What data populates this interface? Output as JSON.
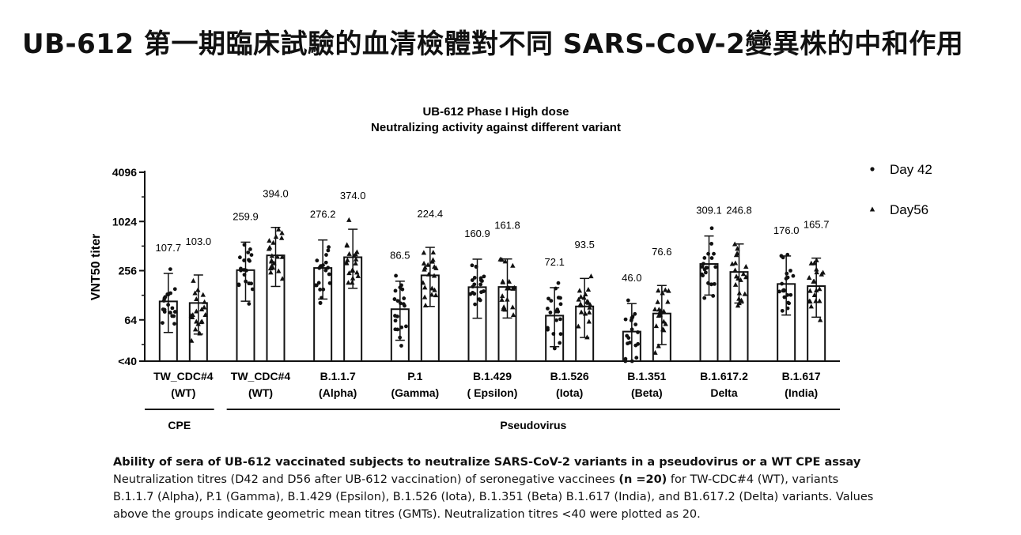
{
  "slide": {
    "title": "UB-612 第一期臨床試驗的血清檢體對不同 SARS-CoV-2變異株的中和作用"
  },
  "chart_data": {
    "type": "bar",
    "title": "UB-612 Phase I High dose",
    "subtitle": "Neutralizing activity against different variant",
    "ylabel": "VNT50 titer",
    "y_scale": "log2",
    "yticks": [
      "4096",
      "1024",
      "256",
      "64",
      "<40"
    ],
    "ylim": [
      20,
      4096
    ],
    "categories": [
      {
        "line1": "TW_CDC#4",
        "line2": "(WT)"
      },
      {
        "line1": "TW_CDC#4",
        "line2": "(WT)"
      },
      {
        "line1": "B.1.1.7",
        "line2": "(Alpha)"
      },
      {
        "line1": "P.1",
        "line2": "(Gamma)"
      },
      {
        "line1": "B.1.429",
        "line2": "( Epsilon)"
      },
      {
        "line1": "B.1.526",
        "line2": "(Iota)"
      },
      {
        "line1": "B.1.351",
        "line2": "(Beta)"
      },
      {
        "line1": "B.1.617.2",
        "line2": "Delta"
      },
      {
        "line1": "B.1.617",
        "line2": "(India)"
      }
    ],
    "series": [
      {
        "name": "Day 42",
        "marker": "circle",
        "values": [
          107.7,
          259.9,
          276.2,
          86.5,
          160.9,
          72.1,
          46.0,
          309.1,
          176.0
        ],
        "labels": [
          "107.7",
          "259.9",
          "276.2",
          "86.5",
          "160.9",
          "72.1",
          "46.0",
          "309.1",
          "176.0"
        ]
      },
      {
        "name": "Day56",
        "marker": "triangle",
        "values": [
          103.0,
          394.0,
          374.0,
          224.4,
          161.8,
          93.5,
          76.6,
          246.8,
          165.7
        ],
        "labels": [
          "103.0",
          "394.0",
          "374.0",
          "224.4",
          "161.8",
          "93.5",
          "76.6",
          "246.8",
          "165.7"
        ]
      }
    ],
    "groups": [
      {
        "label": "CPE",
        "categories": [
          0
        ]
      },
      {
        "label": "Pseudovirus",
        "categories": [
          1,
          2,
          3,
          4,
          5,
          6,
          7,
          8
        ]
      }
    ],
    "legend_position": "top-right",
    "grid": false
  },
  "caption": {
    "title": "Ability of sera of UB-612 vaccinated subjects to neutralize SARS-CoV-2 variants in a pseudovirus or a WT CPE assay",
    "line1_before": "Neutralization titres (D42 and D56 after UB-612 vaccination) of seronegative vaccinees ",
    "line1_bold": "(n =20)",
    "line1_after": " for TW-CDC#4 (WT), variants",
    "line2": "B.1.1.7 (Alpha), P.1 (Gamma), B.1.429 (Epsilon), B.1.526 (Iota), B.1.351 (Beta) B.1.617 (India), and B1.617.2 (Delta) variants. Values",
    "line3": "above the groups indicate geometric mean titres (GMTs). Neutralization titres <40 were plotted as 20."
  }
}
